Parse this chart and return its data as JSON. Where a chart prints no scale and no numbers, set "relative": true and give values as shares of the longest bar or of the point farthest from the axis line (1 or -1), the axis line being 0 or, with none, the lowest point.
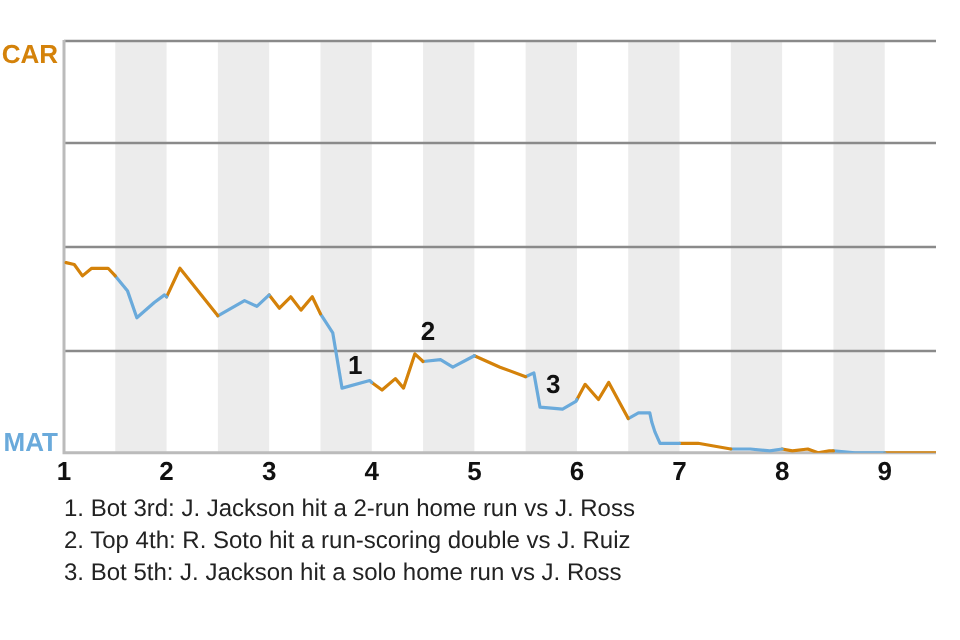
{
  "chart_data": {
    "type": "line",
    "relative": true,
    "xlim": [
      1,
      9.5
    ],
    "xticks": [
      1,
      2,
      3,
      4,
      5,
      6,
      7,
      8,
      9
    ],
    "legend": false,
    "ref_lines": [
      {
        "axis": "y",
        "value": 0.54,
        "color": "#8a8a8a"
      },
      {
        "axis": "y",
        "value": 1.09,
        "color": "#8a8a8a"
      },
      {
        "axis": "y",
        "value": 1.63,
        "color": "#8a8a8a"
      },
      {
        "axis": "y",
        "value": 2.17,
        "color": "#8a8a8a"
      }
    ],
    "marker": "none",
    "line_style": "solid",
    "series": [
      {
        "color": "#d4820a",
        "x": [
          1.02,
          1.1,
          1.18,
          1.27,
          1.43,
          1.5
        ],
        "values": [
          1,
          0.99,
          0.93,
          0.97,
          0.97,
          0.93
        ]
      },
      {
        "color": "#6aaadb",
        "x": [
          1.5,
          1.62,
          1.71,
          1.88,
          1.98,
          2.0
        ],
        "values": [
          0.93,
          0.85,
          0.71,
          0.79,
          0.83,
          0.82
        ]
      },
      {
        "color": "#d4820a",
        "x": [
          2.0,
          2.13,
          2.5
        ],
        "values": [
          0.82,
          0.97,
          0.72
        ]
      },
      {
        "color": "#6aaadb",
        "x": [
          2.5,
          2.76,
          2.88,
          3.0
        ],
        "values": [
          0.72,
          0.8,
          0.77,
          0.83
        ]
      },
      {
        "color": "#d4820a",
        "x": [
          3.0,
          3.1,
          3.21,
          3.31,
          3.42,
          3.5
        ],
        "values": [
          0.83,
          0.76,
          0.82,
          0.75,
          0.82,
          0.73
        ]
      },
      {
        "color": "#6aaadb",
        "x": [
          3.5,
          3.62,
          3.71,
          3.98,
          4.0
        ],
        "values": [
          0.73,
          0.63,
          0.34,
          0.38,
          0.37
        ]
      },
      {
        "color": "#d4820a",
        "x": [
          4.0,
          4.1,
          4.23,
          4.31,
          4.42,
          4.5
        ],
        "values": [
          0.37,
          0.33,
          0.39,
          0.34,
          0.52,
          0.48
        ]
      },
      {
        "color": "#6aaadb",
        "x": [
          4.5,
          4.67,
          4.79,
          5.0
        ],
        "values": [
          0.48,
          0.49,
          0.45,
          0.51
        ]
      },
      {
        "color": "#d4820a",
        "x": [
          5.0,
          5.25,
          5.5
        ],
        "values": [
          0.51,
          0.45,
          0.4
        ]
      },
      {
        "color": "#6aaadb",
        "x": [
          5.5,
          5.58,
          5.64,
          5.86,
          5.99,
          6.0
        ],
        "values": [
          0.4,
          0.42,
          0.24,
          0.23,
          0.27,
          0.28
        ]
      },
      {
        "color": "#d4820a",
        "x": [
          6.0,
          6.08,
          6.21,
          6.31,
          6.5
        ],
        "values": [
          0.28,
          0.36,
          0.28,
          0.37,
          0.18
        ]
      },
      {
        "color": "#6aaadb",
        "x": [
          6.5,
          6.6,
          6.71,
          6.73,
          6.76,
          6.81,
          7.0
        ],
        "values": [
          0.18,
          0.21,
          0.21,
          0.16,
          0.11,
          0.05,
          0.05
        ]
      },
      {
        "color": "#d4820a",
        "x": [
          7.0,
          7.18,
          7.5
        ],
        "values": [
          0.05,
          0.05,
          0.02
        ]
      },
      {
        "color": "#6aaadb",
        "x": [
          7.5,
          7.69,
          7.88,
          8.0
        ],
        "values": [
          0.02,
          0.02,
          0.01,
          0.02
        ]
      },
      {
        "color": "#d4820a",
        "x": [
          8.0,
          8.1,
          8.25,
          8.35,
          8.46,
          8.5
        ],
        "values": [
          0.02,
          0.01,
          0.02,
          0,
          0.01,
          0.01
        ]
      },
      {
        "color": "#6aaadb",
        "x": [
          8.5,
          8.71,
          8.99,
          9.0
        ],
        "values": [
          0.01,
          0,
          0,
          0
        ]
      },
      {
        "color": "#d4820a",
        "x": [
          9.0,
          9.5
        ],
        "values": [
          0,
          0
        ]
      }
    ],
    "bands": [
      {
        "axis": "x",
        "from": 1.5,
        "to": 2,
        "color": "#ececec"
      },
      {
        "axis": "x",
        "from": 2.5,
        "to": 3,
        "color": "#ececec"
      },
      {
        "axis": "x",
        "from": 3.5,
        "to": 4,
        "color": "#ececec"
      },
      {
        "axis": "x",
        "from": 4.5,
        "to": 5,
        "color": "#ececec"
      },
      {
        "axis": "x",
        "from": 5.5,
        "to": 6,
        "color": "#ececec"
      },
      {
        "axis": "x",
        "from": 6.5,
        "to": 7,
        "color": "#ececec"
      },
      {
        "axis": "x",
        "from": 7.5,
        "to": 8,
        "color": "#ececec"
      },
      {
        "axis": "x",
        "from": 8.5,
        "to": 9,
        "color": "#ececec"
      }
    ],
    "annotations": [
      "CAR",
      "MAT",
      {
        "text": "1",
        "x": 3.71,
        "y": 0.34
      },
      {
        "text": "2",
        "x": 4.42,
        "y": 0.52
      },
      {
        "text": "3",
        "x": 5.64,
        "y": 0.24
      },
      "1. Bot 3rd: J. Jackson hit a 2-run home run vs J. Ross",
      "2. Top 4th: R. Soto hit a run-scoring double vs J. Ruiz",
      "3. Bot 5th: J. Jackson hit a solo home run vs J. Ross"
    ]
  }
}
